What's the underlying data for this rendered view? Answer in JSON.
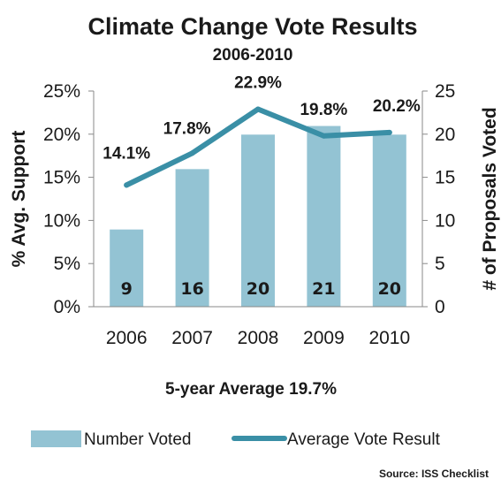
{
  "chart_data": {
    "type": "bar",
    "title": "Climate Change Vote Results",
    "subtitle": "2006-2010",
    "categories": [
      "2006",
      "2007",
      "2008",
      "2009",
      "2010"
    ],
    "series": [
      {
        "name": "Number Voted",
        "type": "bar",
        "axis": "right",
        "values": [
          9,
          16,
          20,
          21,
          20
        ],
        "labels": [
          "9",
          "16",
          "20",
          "21",
          "20"
        ],
        "color": "#93c3d3"
      },
      {
        "name": "Average Vote Result",
        "type": "line",
        "axis": "left",
        "values": [
          14.1,
          17.8,
          22.9,
          19.8,
          20.2
        ],
        "labels": [
          "14.1%",
          "17.8%",
          "22.9%",
          "19.8%",
          "20.2%"
        ],
        "color": "#3a8fa6"
      }
    ],
    "ylabel_left": "% Avg. Support",
    "ylabel_right": "# of Proposals Voted",
    "ylim_left": [
      0,
      25
    ],
    "ylim_right": [
      0,
      25
    ],
    "yticks_left": [
      "0%",
      "5%",
      "10%",
      "15%",
      "20%",
      "25%"
    ],
    "yticks_right": [
      "0",
      "5",
      "10",
      "15",
      "20",
      "25"
    ],
    "grid": false,
    "legend_position": "bottom",
    "annotation": "5-year Average 19.7%",
    "source": "Source: ISS Checklist"
  }
}
